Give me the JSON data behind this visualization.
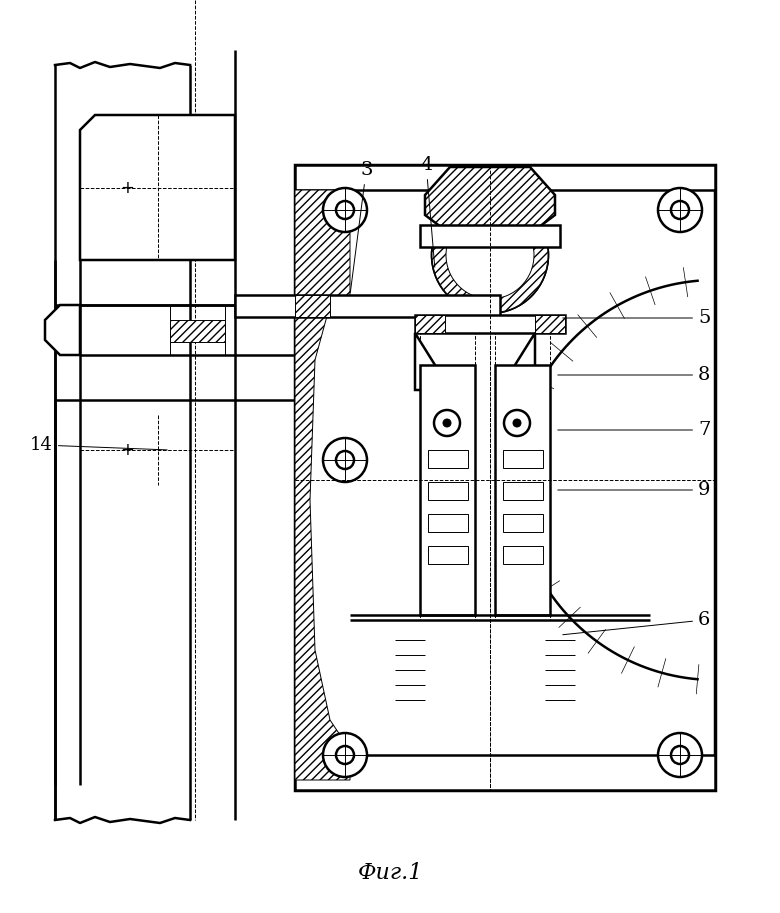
{
  "bg_color": "#ffffff",
  "caption": "Фиг.1",
  "figsize": [
    7.8,
    9.13
  ],
  "dpi": 100,
  "lw_main": 1.8,
  "lw_thin": 0.7,
  "lw_thick": 2.5
}
